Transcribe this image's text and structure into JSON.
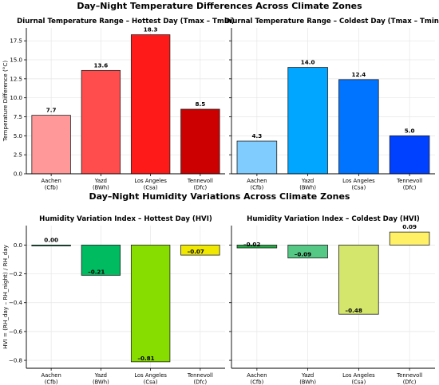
{
  "figure": {
    "suptitle_top": "Day–Night Temperature Differences Across Climate Zones",
    "suptitle_bottom": "Day–Night Humidity Variations Across Climate Zones"
  },
  "chart_data": [
    {
      "type": "bar",
      "title": "Diurnal Temperature Range – Hottest Day (Tmax – Tmin)",
      "ylabel": "Temperature Difference (°C)",
      "categories": [
        "Aachen\n(Cfb)",
        "Yazd\n(BWh)",
        "Los Angeles\n(Csa)",
        "Tennevoll\n(Dfc)"
      ],
      "values": [
        7.7,
        13.6,
        18.3,
        8.5
      ],
      "labels": [
        "7.7",
        "13.6",
        "18.3",
        "8.5"
      ],
      "colors": [
        "#ff9999",
        "#ff4d4d",
        "#ff1a1a",
        "#cc0000"
      ],
      "yticks": [
        0.0,
        2.5,
        5.0,
        7.5,
        10.0,
        12.5,
        15.0,
        17.5
      ],
      "ytick_labels": [
        "0.0",
        "2.5",
        "5.0",
        "7.5",
        "10.0",
        "12.5",
        "15.0",
        "17.5"
      ],
      "ylim": [
        0,
        19.2
      ],
      "grid": true
    },
    {
      "type": "bar",
      "title": "Diurnal Temperature Range – Coldest Day (Tmax – Tmin)",
      "ylabel": "",
      "categories": [
        "Aachen\n(Cfb)",
        "Yazd\n(BWh)",
        "Los Angeles\n(Csa)",
        "Tennevoll\n(Dfc)"
      ],
      "values": [
        4.3,
        14.0,
        12.4,
        5.0
      ],
      "labels": [
        "4.3",
        "14.0",
        "12.4",
        "5.0"
      ],
      "colors": [
        "#80ccff",
        "#00a6ff",
        "#0073ff",
        "#0040ff"
      ],
      "yticks": [],
      "ytick_labels": [],
      "ylim": [
        0,
        19.2
      ],
      "grid": true
    },
    {
      "type": "bar",
      "title": "Humidity Variation Index – Hottest Day (HVI)",
      "ylabel": "HVI = (RH_day – RH_night) / RH_day",
      "categories": [
        "Aachen\n(Cfb)",
        "Yazd\n(BWh)",
        "Los Angeles\n(Csa)",
        "Tennevoll\n(Dfc)"
      ],
      "values": [
        0.0,
        -0.21,
        -0.81,
        -0.07
      ],
      "labels": [
        "0.00",
        "–0.21",
        "–0.81",
        "–0.07"
      ],
      "colors": [
        "#00a84f",
        "#00bb60",
        "#88dd00",
        "#f0e800"
      ],
      "yticks": [
        0.0,
        -0.2,
        -0.4,
        -0.6,
        -0.8
      ],
      "ytick_labels": [
        "0.0",
        "−0.2",
        "−0.4",
        "−0.6",
        "−0.8"
      ],
      "ylim": [
        -0.855,
        0.135
      ],
      "grid": true
    },
    {
      "type": "bar",
      "title": "Humidity Variation Index – Coldest Day (HVI)",
      "ylabel": "",
      "categories": [
        "Aachen\n(Cfb)",
        "Yazd\n(BWh)",
        "Los Angeles\n(Csa)",
        "Tennevoll\n(Dfc)"
      ],
      "values": [
        -0.02,
        -0.09,
        -0.48,
        0.09
      ],
      "labels": [
        "–0.02",
        "–0.09",
        "–0.48",
        "0.09"
      ],
      "colors": [
        "#22aa44",
        "#55c885",
        "#d4e66b",
        "#fff066"
      ],
      "yticks": [],
      "ytick_labels": [],
      "ylim": [
        -0.855,
        0.135
      ],
      "grid": true
    }
  ]
}
